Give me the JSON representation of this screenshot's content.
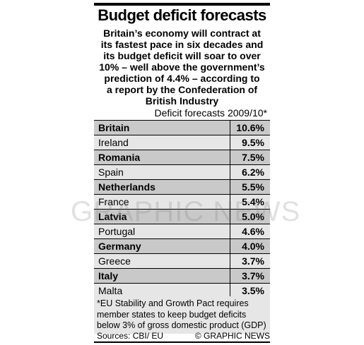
{
  "header": {
    "title": "Budget deficit forecasts",
    "subtitle": [
      "Britain’s economy will contract at",
      "its fastest pace in six decades and",
      "its budget deficit will soar to over",
      "10% – well above the government’s",
      "prediction of 4.4% – according to",
      "a report by the Confederation of",
      "British Industry"
    ]
  },
  "table": {
    "caption": "Deficit forecasts 2009/10*",
    "rows": [
      {
        "country": "Britain",
        "value": "10.6%",
        "highlight": true
      },
      {
        "country": "Ireland",
        "value": "9.5%",
        "highlight": false
      },
      {
        "country": "Romania",
        "value": "7.5%",
        "highlight": true
      },
      {
        "country": "Spain",
        "value": "6.2%",
        "highlight": false
      },
      {
        "country": "Netherlands",
        "value": "5.5%",
        "highlight": true
      },
      {
        "country": "France",
        "value": "5.4%",
        "highlight": false
      },
      {
        "country": "Latvia",
        "value": "5.0%",
        "highlight": true
      },
      {
        "country": "Portugal",
        "value": "4.6%",
        "highlight": false
      },
      {
        "country": "Germany",
        "value": "4.0%",
        "highlight": true
      },
      {
        "country": "Greece",
        "value": "3.7%",
        "highlight": false
      },
      {
        "country": "Italy",
        "value": "3.7%",
        "highlight": true
      },
      {
        "country": "Malta",
        "value": "3.5%",
        "highlight": false
      }
    ]
  },
  "footnote": [
    "*EU Stability and Growth Pact requires",
    "member states to keep budget deficits",
    "below 3% of gross domestic product (GDP)"
  ],
  "footer": {
    "sources": "Sources: CBI/ EU",
    "credit": "© GRAPHIC NEWS"
  },
  "watermark": "GRAPHIC NEWS"
}
